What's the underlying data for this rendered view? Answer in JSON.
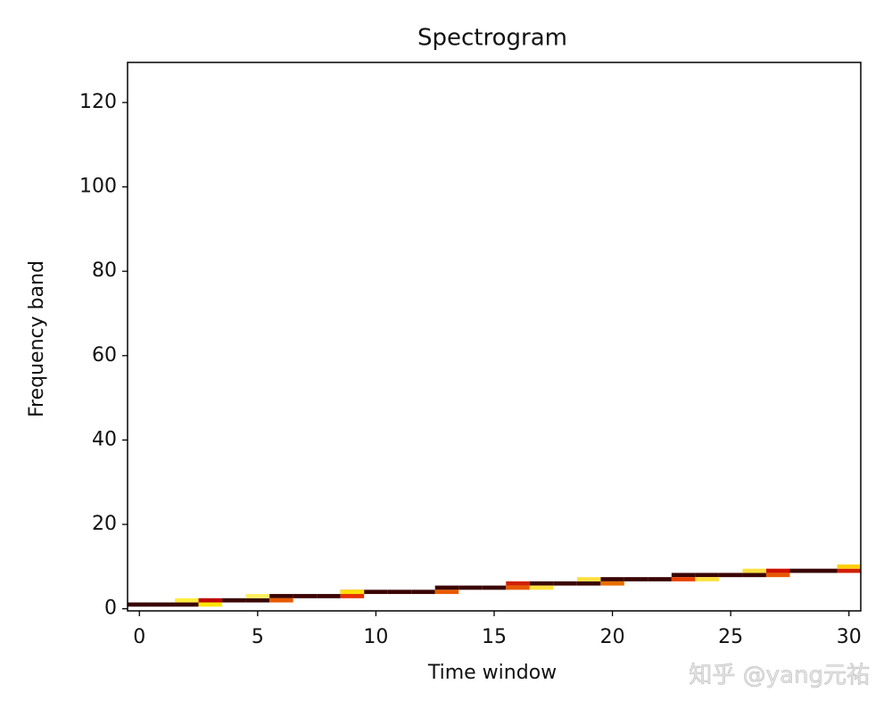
{
  "chart_data": {
    "type": "heatmap",
    "title": "Spectrogram",
    "x_label": "Time window",
    "y_label": "Frequency band",
    "watermark": "知乎 @yang元祐",
    "cells": {
      "x": [
        0,
        1,
        2,
        3,
        4,
        5,
        6,
        7,
        8,
        9,
        10,
        11,
        12,
        13,
        14,
        15,
        16,
        17,
        18,
        19,
        20,
        21,
        22,
        23,
        24,
        25,
        26,
        27,
        28,
        29,
        30,
        2,
        3,
        5,
        6,
        9,
        9,
        13,
        16,
        17,
        20,
        19,
        23,
        24,
        26,
        27,
        30
      ],
      "y": [
        1,
        1,
        1,
        2,
        2,
        2,
        3,
        3,
        3,
        4,
        4,
        4,
        4,
        5,
        5,
        5,
        6,
        6,
        6,
        6,
        7,
        7,
        7,
        8,
        8,
        8,
        8,
        9,
        9,
        9,
        9,
        2,
        1,
        3,
        2,
        4,
        3,
        4,
        5,
        5,
        6,
        7,
        7,
        7,
        9,
        8,
        10
      ],
      "colors": [
        "#3a0404",
        "#3a0404",
        "#3a0404",
        "#c00000",
        "#3a0404",
        "#3a0404",
        "#3a0404",
        "#3a0404",
        "#3a0404",
        "#c80000",
        "#3a0404",
        "#3a0404",
        "#3a0404",
        "#3a0404",
        "#3a0404",
        "#3a0404",
        "#d02000",
        "#3a0404",
        "#3a0404",
        "#3a0404",
        "#3a0404",
        "#3a0404",
        "#3a0404",
        "#3a0404",
        "#3a0404",
        "#3a0404",
        "#3a0404",
        "#d01000",
        "#3a0404",
        "#3a0404",
        "#d02000",
        "#ffee40",
        "#ffe600",
        "#ffee60",
        "#e85a00",
        "#ffe000",
        "#e83000",
        "#e85a00",
        "#e85a00",
        "#ffe040",
        "#e87000",
        "#ffe040",
        "#e84000",
        "#ffe040",
        "#ffe040",
        "#e85a00",
        "#ffd000"
      ]
    },
    "xlim": [
      -0.5,
      30.5
    ],
    "ylim": [
      -0.5,
      129.5
    ],
    "xticks": [
      0,
      5,
      10,
      15,
      20,
      25,
      30
    ],
    "yticks": [
      0,
      20,
      40,
      60,
      80,
      100,
      120
    ]
  }
}
